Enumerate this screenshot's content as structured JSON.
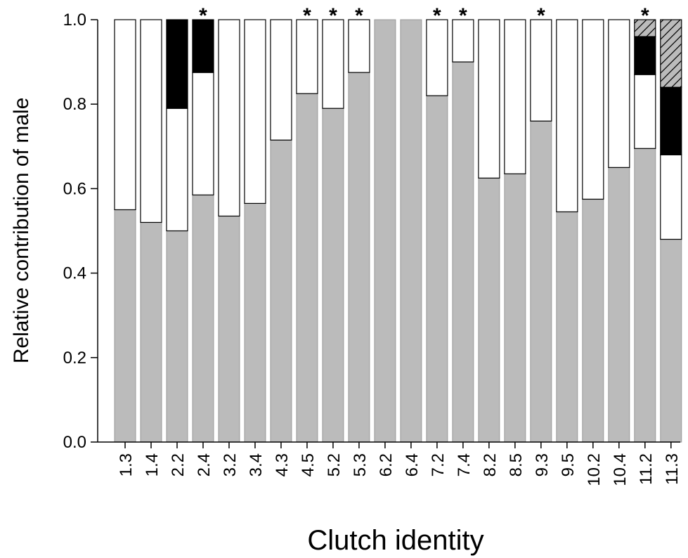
{
  "chart_data": {
    "type": "bar",
    "stacked": true,
    "xlabel": "Clutch identity",
    "ylabel": "Relative contribution of male",
    "ylim": [
      0,
      1.0
    ],
    "yticks": [
      "0.0",
      "0.2",
      "0.4",
      "0.6",
      "0.8",
      "1.0"
    ],
    "grid": false,
    "categories": [
      "1.3",
      "1.4",
      "2.2",
      "2.4",
      "3.2",
      "3.4",
      "4.3",
      "4.5",
      "5.2",
      "5.3",
      "6.2",
      "6.4",
      "7.2",
      "7.4",
      "8.2",
      "8.5",
      "9.3",
      "9.5",
      "10.2",
      "10.4",
      "11.2",
      "11.3"
    ],
    "significance_marker": "*",
    "significant": [
      false,
      false,
      false,
      true,
      false,
      false,
      false,
      true,
      true,
      true,
      false,
      false,
      true,
      true,
      false,
      false,
      true,
      false,
      false,
      false,
      true,
      false
    ],
    "segment_styles": [
      {
        "fill": "#bbbbbb",
        "pattern": "solid"
      },
      {
        "fill": "#ffffff",
        "pattern": "solid"
      },
      {
        "fill": "#000000",
        "pattern": "solid"
      },
      {
        "fill": "#bbbbbb",
        "pattern": "hatched"
      }
    ],
    "series": [
      {
        "values": [
          0.55,
          0.52,
          0.5,
          0.585,
          0.535,
          0.565,
          0.715,
          0.825,
          0.79,
          0.875,
          1.0,
          1.0,
          0.82,
          0.9,
          0.625,
          0.635,
          0.76,
          0.545,
          0.575,
          0.65,
          0.695,
          0.48
        ]
      },
      {
        "values": [
          0.45,
          0.48,
          0.29,
          0.29,
          0.465,
          0.435,
          0.285,
          0.175,
          0.21,
          0.125,
          0.0,
          0.0,
          0.18,
          0.1,
          0.375,
          0.365,
          0.24,
          0.455,
          0.425,
          0.35,
          0.175,
          0.2
        ]
      },
      {
        "values": [
          0,
          0,
          0.21,
          0.125,
          0,
          0,
          0,
          0,
          0,
          0,
          0,
          0,
          0,
          0,
          0,
          0,
          0,
          0,
          0,
          0,
          0.09,
          0.16
        ]
      },
      {
        "values": [
          0,
          0,
          0,
          0,
          0,
          0,
          0,
          0,
          0,
          0,
          0,
          0,
          0,
          0,
          0,
          0,
          0,
          0,
          0,
          0,
          0.04,
          0.16
        ]
      }
    ]
  }
}
